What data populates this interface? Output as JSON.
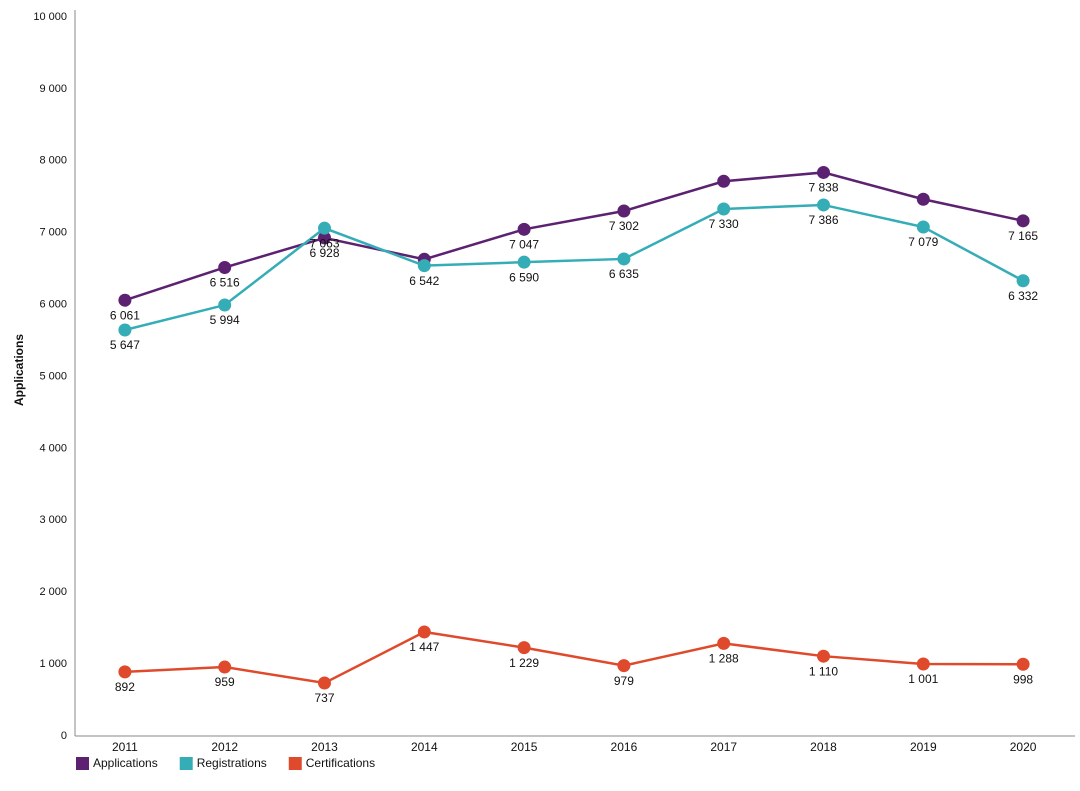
{
  "chart_data": {
    "type": "line",
    "y_label": "Applications",
    "categories": [
      "2011",
      "2012",
      "2013",
      "2014",
      "2015",
      "2016",
      "2017",
      "2018",
      "2019",
      "2020"
    ],
    "series": [
      {
        "name": "Applications",
        "color": "#5c2170",
        "values": [
          6061,
          6516,
          6928,
          6630,
          7047,
          7302,
          7715,
          7838,
          7465,
          7165
        ],
        "value_labels": [
          "6 061",
          "6 516",
          "6 928",
          null,
          "7 047",
          "7 302",
          null,
          "7 838",
          null,
          "7 165"
        ]
      },
      {
        "name": "Registrations",
        "color": "#35adb7",
        "values": [
          5647,
          5994,
          7063,
          6542,
          6590,
          6635,
          7330,
          7386,
          7079,
          6332
        ],
        "value_labels": [
          "5 647",
          "5 994",
          "7 063",
          "6 542",
          "6 590",
          "6 635",
          "7 330",
          "7 386",
          "7 079",
          "6 332"
        ]
      },
      {
        "name": "Certifications",
        "color": "#e04a2c",
        "values": [
          892,
          959,
          737,
          1447,
          1229,
          979,
          1288,
          1110,
          1001,
          998
        ],
        "value_labels": [
          "892",
          "959",
          "737",
          "1 447",
          "1 229",
          "979",
          "1 288",
          "1 110",
          "1 001",
          "998"
        ]
      }
    ],
    "ylim": [
      0,
      10000
    ],
    "yticks": [
      0,
      {
        "value": 1000,
        "label": "1 000"
      },
      {
        "value": 2000,
        "label": "2 000"
      },
      {
        "value": 3000,
        "label": "3 000"
      },
      {
        "value": 4000,
        "label": "4 000"
      },
      {
        "value": 5000,
        "label": "5 000"
      },
      {
        "value": 6000,
        "label": "6 000"
      },
      {
        "value": 7000,
        "label": "7 000"
      },
      {
        "value": 8000,
        "label": "8 000"
      },
      {
        "value": 9000,
        "label": "9 000"
      },
      {
        "value": 10000,
        "label": "10 000"
      }
    ],
    "grid": false,
    "legend": "bottom-left"
  }
}
